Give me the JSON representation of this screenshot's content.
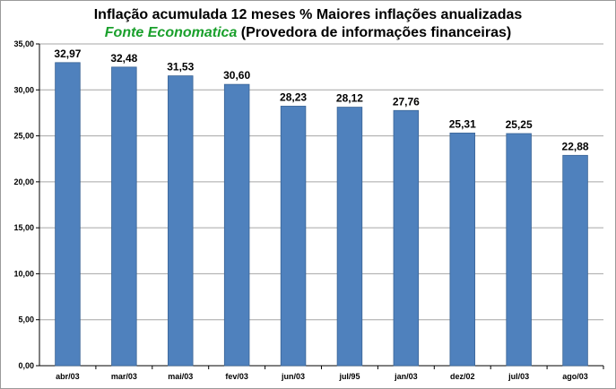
{
  "chart_data": {
    "type": "bar",
    "title": "Inflação acumulada 12 meses % Maiores inflações anualizadas",
    "subtitle_source": "Fonte Economatica",
    "subtitle_rest": " (Provedora de informações financeiras)",
    "categories": [
      "abr/03",
      "mar/03",
      "mai/03",
      "fev/03",
      "jun/03",
      "jul/95",
      "jan/03",
      "dez/02",
      "jul/03",
      "ago/03"
    ],
    "values": [
      32.97,
      32.48,
      31.53,
      30.6,
      28.23,
      28.12,
      27.76,
      25.31,
      25.25,
      22.88
    ],
    "data_labels": [
      "32,97",
      "32,48",
      "31,53",
      "30,60",
      "28,23",
      "28,12",
      "27,76",
      "25,31",
      "25,25",
      "22,88"
    ],
    "ylim": [
      0,
      35
    ],
    "yticks": [
      0,
      5,
      10,
      15,
      20,
      25,
      30,
      35
    ],
    "ytick_labels": [
      "0,00",
      "5,00",
      "10,00",
      "15,00",
      "20,00",
      "25,00",
      "30,00",
      "35,00"
    ],
    "xlabel": "",
    "ylabel": "",
    "grid": true,
    "legend": "none",
    "colors": {
      "bar": "#4f81bd",
      "bar_edge": "#3a6496",
      "grid": "#a6a6a6",
      "source_text": "#1aa02c"
    }
  }
}
